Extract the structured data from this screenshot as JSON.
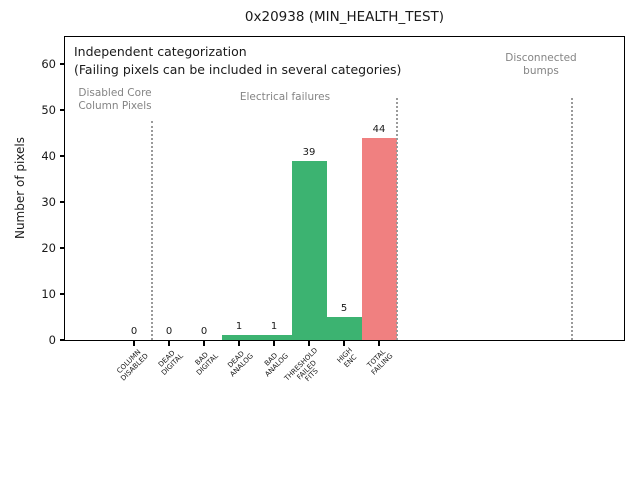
{
  "chart_data": {
    "type": "bar",
    "title": "0x20938 (MIN_HEALTH_TEST)",
    "xlabel": "",
    "ylabel": "Number of pixels",
    "ylim": [
      0,
      65.9
    ],
    "yticks": [
      0,
      10,
      20,
      30,
      40,
      50,
      60
    ],
    "grid": false,
    "legend": null,
    "annotation": {
      "line1": "Independent categorization",
      "line2": "(Failing pixels can be included in several categories)"
    },
    "section_labels": [
      {
        "name": "disabled-core-column-pixels",
        "lines": [
          "Disabled Core",
          "Column Pixels"
        ]
      },
      {
        "name": "electrical-failures",
        "lines": [
          "Electrical failures"
        ]
      },
      {
        "name": "disconnected-bumps",
        "lines": [
          "Disconnected",
          "bumps"
        ]
      }
    ],
    "categories": [
      "COLUMN DISABLED",
      "DEAD DIGITAL",
      "BAD DIGITAL",
      "DEAD ANALOG",
      "BAD ANALOG",
      "THRESHOLD FAILED FITS",
      "HIGH ENC",
      "TOTAL FAILING"
    ],
    "bars": [
      {
        "category_lines": [
          "COLUMN",
          "DISABLED"
        ],
        "value": 0,
        "value_label": "0",
        "color": "#3cb371"
      },
      {
        "category_lines": [
          "DEAD",
          "DIGITAL"
        ],
        "value": 0,
        "value_label": "0",
        "color": "#3cb371"
      },
      {
        "category_lines": [
          "BAD",
          "DIGITAL"
        ],
        "value": 0,
        "value_label": "0",
        "color": "#3cb371"
      },
      {
        "category_lines": [
          "DEAD",
          "ANALOG"
        ],
        "value": 1,
        "value_label": "1",
        "color": "#3cb371"
      },
      {
        "category_lines": [
          "BAD",
          "ANALOG"
        ],
        "value": 1,
        "value_label": "1",
        "color": "#3cb371"
      },
      {
        "category_lines": [
          "THRESHOLD",
          "FAILED",
          "FITS"
        ],
        "value": 39,
        "value_label": "39",
        "color": "#3cb371"
      },
      {
        "category_lines": [
          "HIGH",
          "ENC"
        ],
        "value": 5,
        "value_label": "5",
        "color": "#3cb371"
      },
      {
        "category_lines": [
          "TOTAL",
          "FAILING"
        ],
        "value": 44,
        "value_label": "44",
        "color": "#f08080"
      }
    ],
    "colors": {
      "bar_green": "#3cb371",
      "bar_red": "#f08080",
      "section_text": "#848484",
      "divider": "#9a9a9a",
      "text": "#1a1a1a",
      "background": "#ffffff"
    }
  }
}
